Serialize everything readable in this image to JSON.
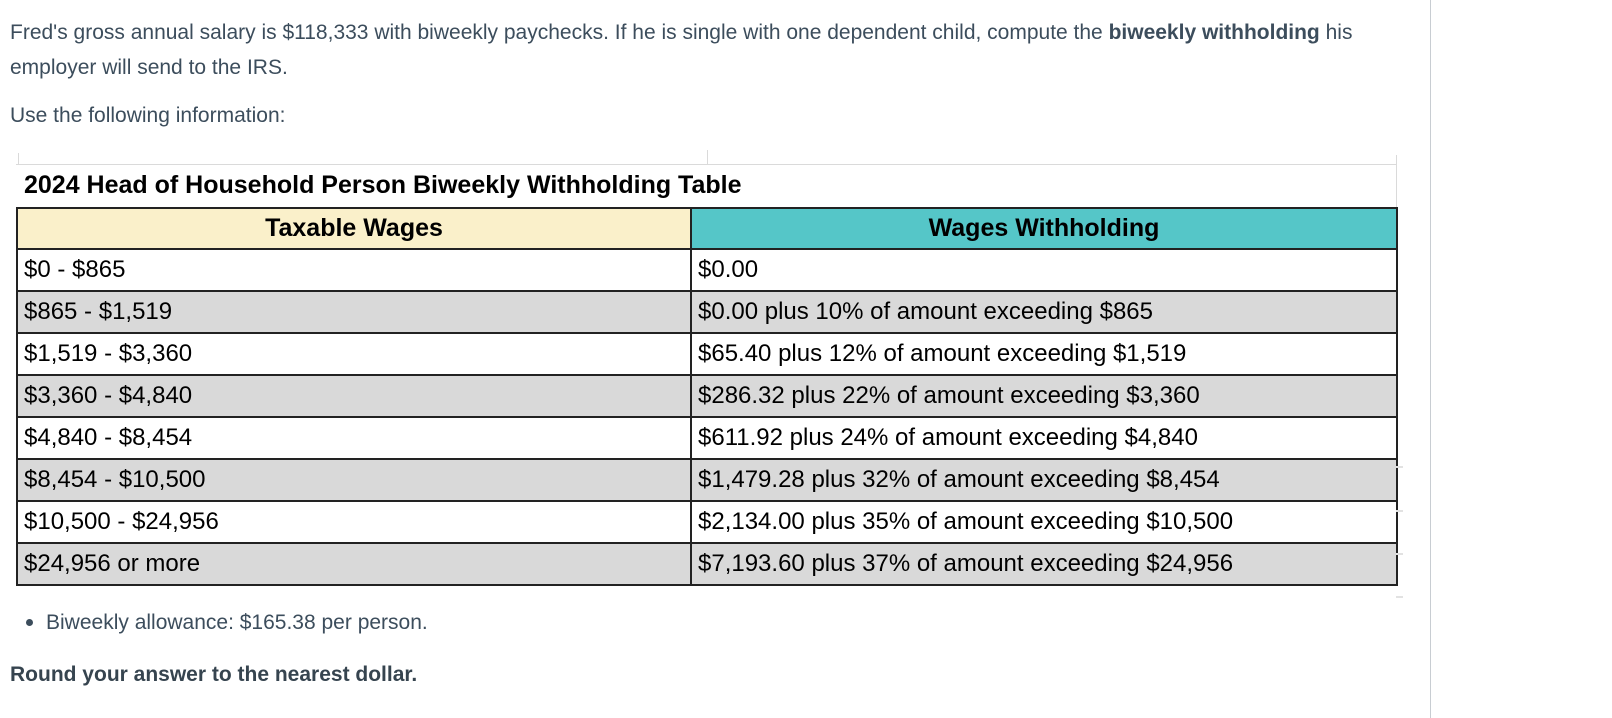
{
  "question": {
    "before_bold": "Fred's gross annual salary is $118,333 with biweekly paychecks. If he is single with one dependent child, compute the ",
    "bold": "biweekly withholding",
    "after_bold": " his employer will send to the IRS.",
    "instruction": "Use the following information:"
  },
  "table": {
    "title": "2024 Head of Household Person Biweekly Withholding Table",
    "headers": [
      "Taxable Wages",
      "Wages Withholding"
    ],
    "rows": [
      [
        "$0 - $865",
        "$0.00"
      ],
      [
        "$865 - $1,519",
        "$0.00 plus 10% of amount exceeding $865"
      ],
      [
        "$1,519 - $3,360",
        "$65.40 plus 12% of amount exceeding $1,519"
      ],
      [
        "$3,360 - $4,840",
        "$286.32 plus 22% of amount exceeding $3,360"
      ],
      [
        "$4,840 - $8,454",
        "$611.92 plus 24% of amount exceeding $4,840"
      ],
      [
        "$8,454 - $10,500",
        "$1,479.28 plus 32% of amount exceeding $8,454"
      ],
      [
        "$10,500 - $24,956",
        "$2,134.00 plus 35% of amount exceeding $10,500"
      ],
      [
        "$24,956 or more",
        "$7,193.60 plus 37% of amount exceeding $24,956"
      ]
    ],
    "colors": {
      "taxable_header_bg": "#FAF0CA",
      "withholding_header_bg": "#55C6C8",
      "alt_row_bg": "#D9D9D9",
      "table_border": "#222222",
      "table_text": "#000000"
    }
  },
  "notes": {
    "allowance_bullet": "Biweekly allowance: $165.38 per person.",
    "rounding_note": "Round your answer to the nearest dollar."
  },
  "page": {
    "body_text_color": "#3C4D5C",
    "divider_color": "#C8CDD2",
    "background": "#FFFFFF"
  }
}
